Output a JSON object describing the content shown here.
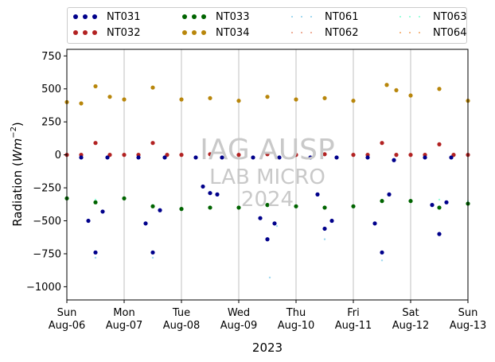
{
  "chart_data": {
    "type": "scatter",
    "ylabel": "Radiation ($Wm^{-2}$)",
    "ylabel_parts": {
      "main": "Radiation (",
      "base": "Wm",
      "exp": "−2",
      "close": ")"
    },
    "xlabel": "2023",
    "ylim": [
      -1100,
      800
    ],
    "yticks": [
      -1000,
      -750,
      -500,
      -250,
      0,
      250,
      500,
      750
    ],
    "ytick_labels": [
      "−1000",
      "−750",
      "−500",
      "−250",
      "0",
      "250",
      "500",
      "750"
    ],
    "xlim": [
      "2023-08-06",
      "2023-08-13"
    ],
    "xticks": [
      {
        "date": "2023-08-06",
        "day": "Sun",
        "label": "Aug-06"
      },
      {
        "date": "2023-08-07",
        "day": "Mon",
        "label": "Aug-07"
      },
      {
        "date": "2023-08-08",
        "day": "Tue",
        "label": "Aug-08"
      },
      {
        "date": "2023-08-09",
        "day": "Wed",
        "label": "Aug-09"
      },
      {
        "date": "2023-08-10",
        "day": "Thu",
        "label": "Aug-10"
      },
      {
        "date": "2023-08-11",
        "day": "Fri",
        "label": "Aug-11"
      },
      {
        "date": "2023-08-12",
        "day": "Sat",
        "label": "Aug-12"
      },
      {
        "date": "2023-08-13",
        "day": "Sun",
        "label": "Aug-13"
      }
    ],
    "grid": "x-only",
    "legend_placement": "top, outside plot, 4 columns",
    "watermark": [
      "IAG AUSP",
      "LAB MICRO",
      "2024"
    ],
    "series": [
      {
        "name": "NT031",
        "color": "#00008b",
        "style": "large-dots",
        "x": [
          "2023-08-06 06:00",
          "2023-08-06 09:00",
          "2023-08-06 12:00",
          "2023-08-06 15:00",
          "2023-08-06 17:00",
          "2023-08-07 06:00",
          "2023-08-07 09:00",
          "2023-08-07 12:00",
          "2023-08-07 15:00",
          "2023-08-07 17:00",
          "2023-08-08 06:00",
          "2023-08-08 09:00",
          "2023-08-08 12:00",
          "2023-08-08 15:00",
          "2023-08-08 17:00",
          "2023-08-09 06:00",
          "2023-08-09 09:00",
          "2023-08-09 12:00",
          "2023-08-09 15:00",
          "2023-08-09 17:00",
          "2023-08-10 06:00",
          "2023-08-10 09:00",
          "2023-08-10 12:00",
          "2023-08-10 15:00",
          "2023-08-10 17:00",
          "2023-08-11 06:00",
          "2023-08-11 09:00",
          "2023-08-11 12:00",
          "2023-08-11 15:00",
          "2023-08-11 17:00",
          "2023-08-12 06:00",
          "2023-08-12 09:00",
          "2023-08-12 12:00",
          "2023-08-12 15:00",
          "2023-08-12 17:00"
        ],
        "y": [
          -20,
          -500,
          -740,
          -430,
          -20,
          -20,
          -520,
          -740,
          -420,
          -20,
          -20,
          -240,
          -290,
          -300,
          -20,
          -20,
          -480,
          -640,
          -520,
          -20,
          -20,
          -300,
          -560,
          -500,
          -20,
          -20,
          -520,
          -740,
          -300,
          -40,
          -20,
          -380,
          -600,
          -360,
          -20
        ]
      },
      {
        "name": "NT032",
        "color": "#b22222",
        "style": "large-dots",
        "x": [
          "2023-08-06 00:00",
          "2023-08-06 06:00",
          "2023-08-06 12:00",
          "2023-08-06 18:00",
          "2023-08-07 00:00",
          "2023-08-07 06:00",
          "2023-08-07 12:00",
          "2023-08-07 18:00",
          "2023-08-08 00:00",
          "2023-08-08 12:00",
          "2023-08-09 00:00",
          "2023-08-09 12:00",
          "2023-08-10 00:00",
          "2023-08-10 12:00",
          "2023-08-11 00:00",
          "2023-08-11 06:00",
          "2023-08-11 12:00",
          "2023-08-11 18:00",
          "2023-08-12 00:00",
          "2023-08-12 06:00",
          "2023-08-12 12:00",
          "2023-08-12 18:00",
          "2023-08-13 00:00"
        ],
        "y": [
          0,
          0,
          90,
          0,
          0,
          0,
          90,
          0,
          0,
          5,
          0,
          5,
          0,
          5,
          0,
          0,
          90,
          0,
          0,
          0,
          80,
          0,
          0
        ]
      },
      {
        "name": "NT033",
        "color": "#006400",
        "style": "large-dots",
        "x": [
          "2023-08-06 00:00",
          "2023-08-06 12:00",
          "2023-08-07 00:00",
          "2023-08-07 12:00",
          "2023-08-08 00:00",
          "2023-08-08 12:00",
          "2023-08-09 00:00",
          "2023-08-09 12:00",
          "2023-08-10 00:00",
          "2023-08-10 12:00",
          "2023-08-11 00:00",
          "2023-08-11 12:00",
          "2023-08-12 00:00",
          "2023-08-12 12:00",
          "2023-08-13 00:00"
        ],
        "y": [
          -330,
          -360,
          -330,
          -390,
          -410,
          -400,
          -400,
          -380,
          -390,
          -400,
          -390,
          -350,
          -350,
          -400,
          -370
        ]
      },
      {
        "name": "NT034",
        "color": "#b8860b",
        "style": "large-dots",
        "x": [
          "2023-08-06 00:00",
          "2023-08-06 06:00",
          "2023-08-06 12:00",
          "2023-08-06 18:00",
          "2023-08-07 00:00",
          "2023-08-07 12:00",
          "2023-08-08 00:00",
          "2023-08-08 12:00",
          "2023-08-09 00:00",
          "2023-08-09 12:00",
          "2023-08-10 00:00",
          "2023-08-10 12:00",
          "2023-08-11 00:00",
          "2023-08-11 14:00",
          "2023-08-11 18:00",
          "2023-08-12 00:00",
          "2023-08-12 12:00",
          "2023-08-13 00:00"
        ],
        "y": [
          400,
          390,
          520,
          440,
          420,
          510,
          420,
          430,
          410,
          440,
          420,
          430,
          410,
          530,
          490,
          450,
          500,
          410
        ]
      },
      {
        "name": "NT061",
        "color": "#87ceeb",
        "style": "small-dots",
        "x": [
          "2023-08-06 06:00",
          "2023-08-06 12:00",
          "2023-08-06 17:00",
          "2023-08-07 06:00",
          "2023-08-07 12:00",
          "2023-08-07 17:00",
          "2023-08-08 12:00",
          "2023-08-09 13:00",
          "2023-08-09 16:00",
          "2023-08-10 12:00",
          "2023-08-11 12:00",
          "2023-08-12 12:00"
        ],
        "y": [
          -20,
          -780,
          -20,
          -20,
          -780,
          -20,
          -280,
          -930,
          -540,
          -640,
          -800,
          -600
        ]
      },
      {
        "name": "NT062",
        "color": "#e9967a",
        "style": "small-dots",
        "x": [
          "2023-08-06 00:00",
          "2023-08-06 12:00",
          "2023-08-07 12:00",
          "2023-08-08 12:00",
          "2023-08-09 12:00",
          "2023-08-10 12:00",
          "2023-08-11 12:00",
          "2023-08-12 12:00",
          "2023-08-13 00:00"
        ],
        "y": [
          0,
          90,
          90,
          5,
          5,
          5,
          90,
          80,
          0
        ]
      },
      {
        "name": "NT063",
        "color": "#7fffd4",
        "style": "small-dots",
        "x": [
          "2023-08-06 00:00",
          "2023-08-06 12:00",
          "2023-08-07 12:00",
          "2023-08-08 12:00",
          "2023-08-09 12:00",
          "2023-08-10 12:00",
          "2023-08-11 12:00",
          "2023-08-12 12:00",
          "2023-08-13 00:00"
        ],
        "y": [
          -320,
          -340,
          -380,
          -400,
          -390,
          -400,
          -340,
          -340,
          -350
        ]
      },
      {
        "name": "NT064",
        "color": "#f4a460",
        "style": "small-dots",
        "x": [
          "2023-08-06 00:00",
          "2023-08-06 12:00",
          "2023-08-07 12:00",
          "2023-08-08 12:00",
          "2023-08-09 12:00",
          "2023-08-10 12:00",
          "2023-08-11 14:00",
          "2023-08-12 12:00",
          "2023-08-13 00:00"
        ],
        "y": [
          400,
          520,
          510,
          430,
          440,
          430,
          530,
          500,
          410
        ]
      }
    ]
  }
}
